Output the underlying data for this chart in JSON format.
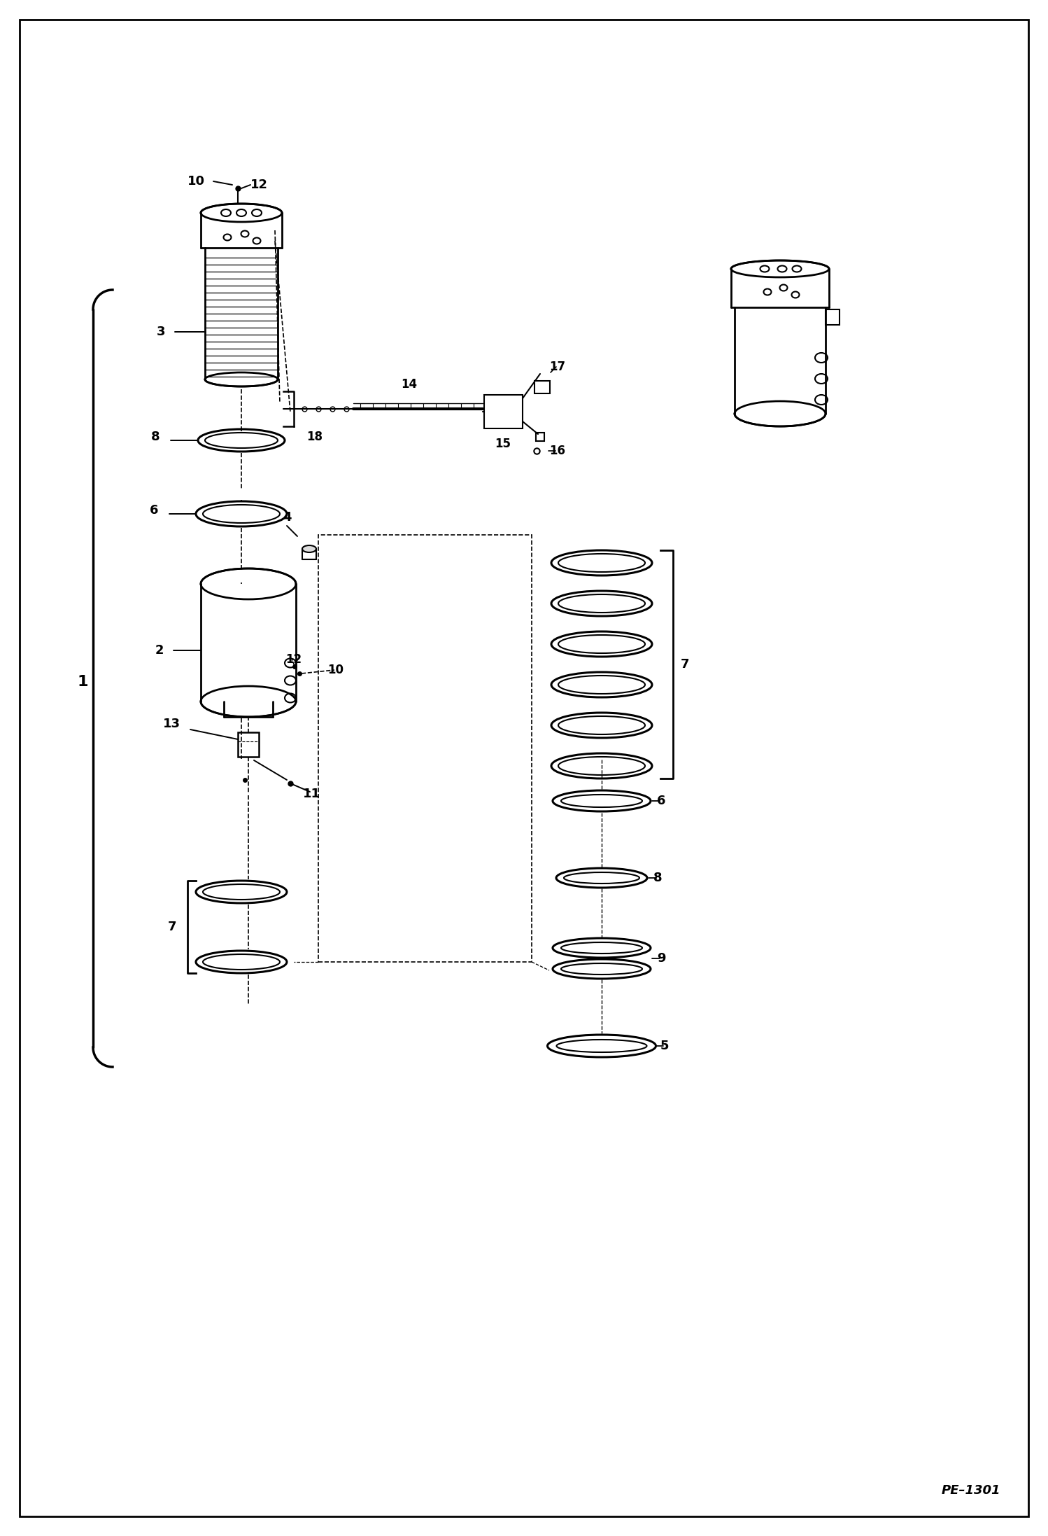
{
  "bg_color": "#ffffff",
  "border_color": "#000000",
  "line_color": "#000000",
  "text_color": "#000000",
  "fig_width": 14.98,
  "fig_height": 21.94,
  "dpi": 100,
  "page_code": "PE–1301"
}
